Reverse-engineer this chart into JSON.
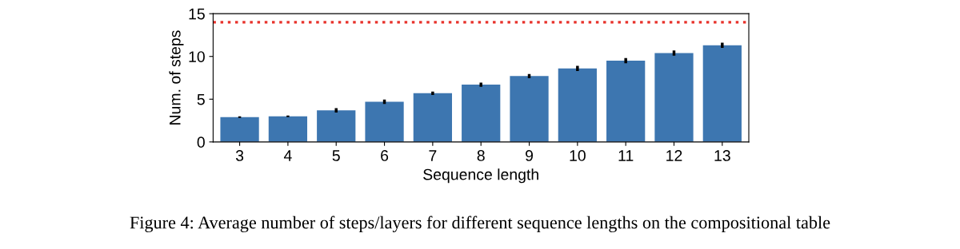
{
  "chart_data": {
    "type": "bar",
    "xlabel": "Sequence length",
    "ylabel": "Num. of steps",
    "categories": [
      "3",
      "4",
      "5",
      "6",
      "7",
      "8",
      "9",
      "10",
      "11",
      "12",
      "13"
    ],
    "values": [
      2.9,
      3.0,
      3.7,
      4.7,
      5.7,
      6.7,
      7.7,
      8.6,
      9.5,
      10.4,
      11.3
    ],
    "errors": [
      0.1,
      0.1,
      0.25,
      0.25,
      0.2,
      0.25,
      0.25,
      0.3,
      0.3,
      0.3,
      0.3
    ],
    "color": "#3d76b0",
    "ylim": [
      0,
      15
    ],
    "yticks": [
      0,
      5,
      10,
      15
    ],
    "grid": false,
    "ref_lines": [
      {
        "axis": "y",
        "value": 14,
        "color": "#e8322b",
        "line_style": "dotted"
      }
    ],
    "annotations": [
      "Figure 4: Average number of steps/layers for different sequence lengths on the compositional table"
    ]
  }
}
